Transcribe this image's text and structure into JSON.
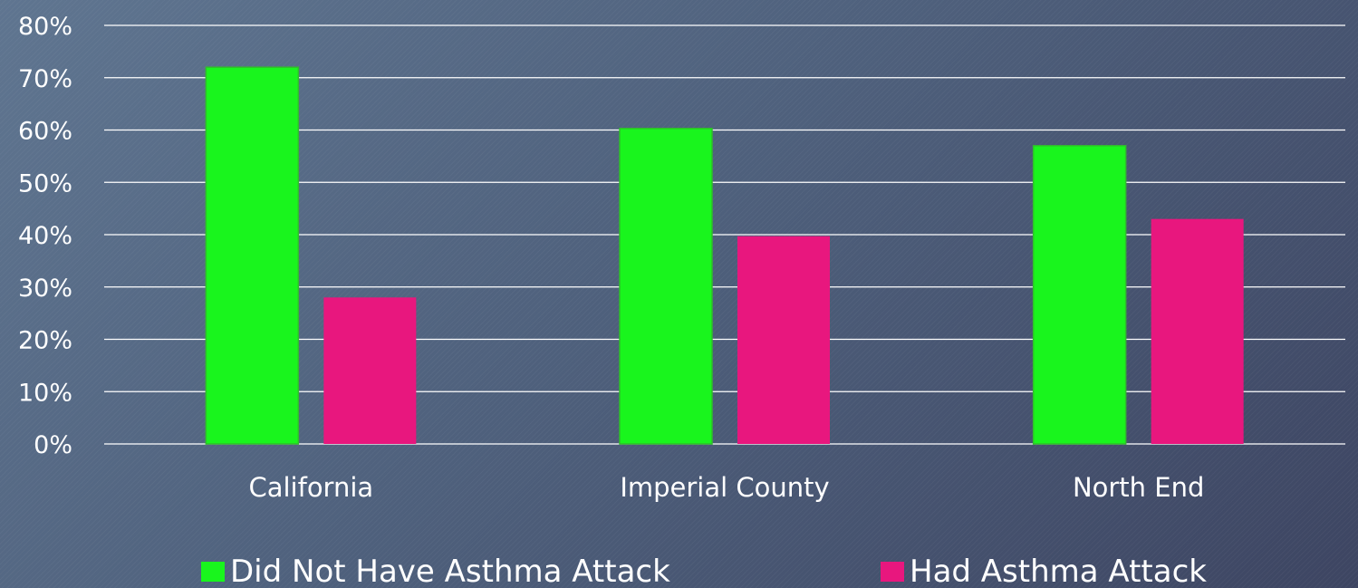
{
  "chart_data": {
    "type": "bar",
    "categories": [
      "California",
      "Imperial County",
      "North End"
    ],
    "series": [
      {
        "name": "Did Not Have Asthma Attack",
        "values": [
          72,
          60.3,
          57
        ],
        "color": "#19f51d"
      },
      {
        "name": "Had Asthma Attack",
        "values": [
          28,
          39.7,
          43
        ],
        "color": "#e8177e"
      }
    ],
    "ylim": [
      0,
      80
    ],
    "yticks": [
      0,
      10,
      20,
      30,
      40,
      50,
      60,
      70,
      80
    ],
    "ytick_labels": [
      "0%",
      "10%",
      "20%",
      "30%",
      "40%",
      "50%",
      "60%",
      "70%",
      "80%"
    ],
    "grid": true,
    "legend": "bottom"
  }
}
